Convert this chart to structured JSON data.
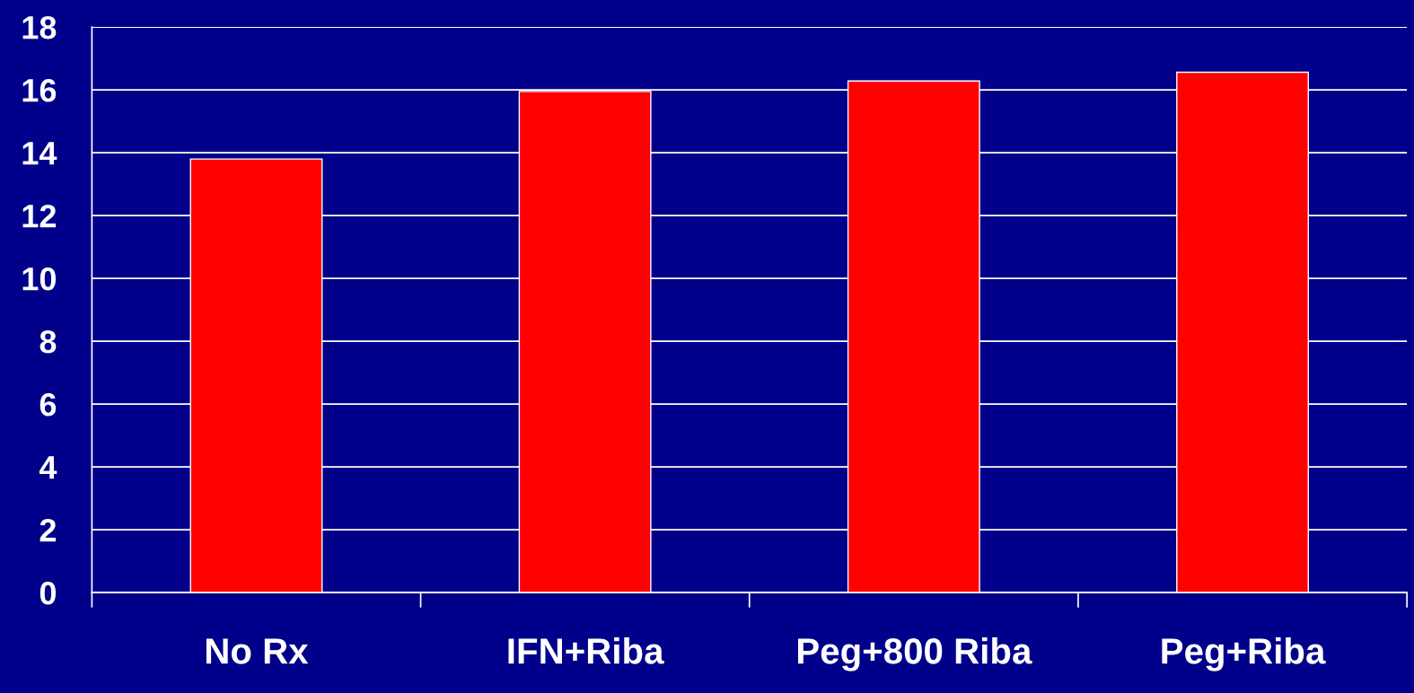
{
  "chart_data": {
    "type": "bar",
    "categories": [
      "No Rx",
      "IFN+Riba",
      "Peg+800 Riba",
      "Peg+Riba"
    ],
    "values": [
      13.8,
      15.95,
      16.28,
      16.56
    ],
    "color": "#ff0000",
    "ylim": [
      0,
      18
    ],
    "yticks": [
      0,
      2,
      4,
      6,
      8,
      10,
      12,
      14,
      16,
      18
    ],
    "grid": "y",
    "legend": false
  }
}
